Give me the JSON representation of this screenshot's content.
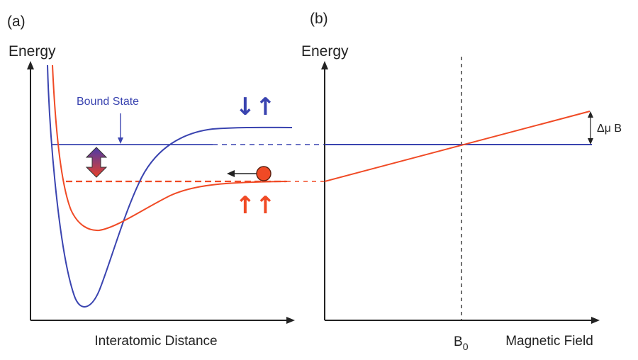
{
  "panel_a": {
    "tag": "(a)",
    "y_axis_label": "Energy",
    "x_axis_label": "Interatomic Distance",
    "bound_state_label": "Bound State",
    "spin_bound": "↓↑",
    "spin_open": "↑↑"
  },
  "panel_b": {
    "tag": "(b)",
    "y_axis_label": "Energy",
    "x_axis_label": "Magnetic Field",
    "b0_label": "B",
    "b0_subscript": "0",
    "delta_label": "Δμ B"
  },
  "colors": {
    "bound": "#3a44b0",
    "open": "#f04a25",
    "axis": "#222222",
    "arrow_gradient_top": "#4a3aa8",
    "arrow_gradient_bottom": "#e8402a"
  }
}
